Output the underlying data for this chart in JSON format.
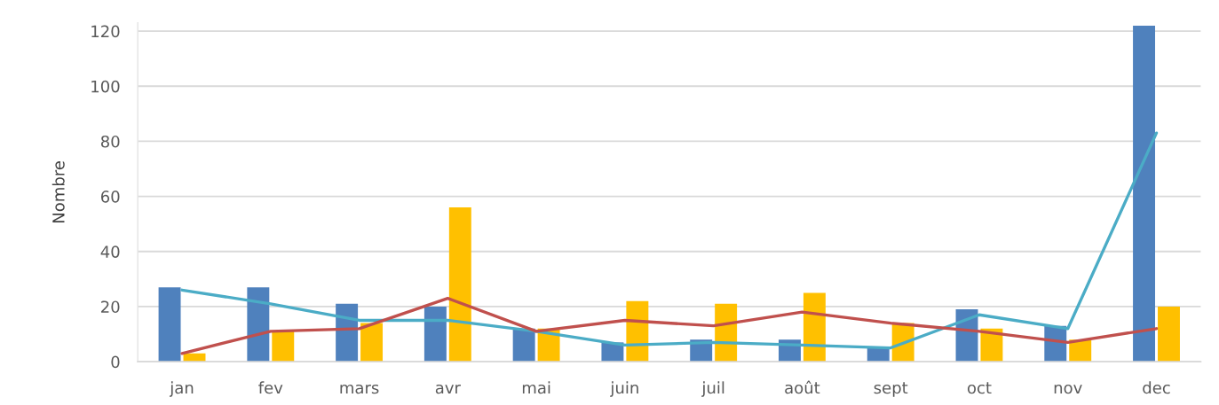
{
  "chart_data": {
    "type": "bar",
    "ylabel": "Nombre",
    "categories": [
      "jan",
      "fev",
      "mars",
      "avr",
      "mai",
      "juin",
      "juil",
      "août",
      "sept",
      "oct",
      "nov",
      "dec"
    ],
    "series": [
      {
        "color": "#4f81bd",
        "values": [
          27,
          27,
          21,
          20,
          12,
          7,
          8,
          8,
          5,
          19,
          13,
          122
        ]
      },
      {
        "color": "#ffc000",
        "values": [
          3,
          11,
          14,
          56,
          12,
          22,
          21,
          25,
          14,
          12,
          8,
          20
        ]
      },
      {
        "type": "line",
        "color": "#4bacc6",
        "values": [
          26,
          21,
          15,
          15,
          11,
          6,
          7,
          6,
          5,
          17,
          12,
          83
        ]
      },
      {
        "type": "line",
        "color": "#c0504d",
        "values": [
          3,
          11,
          12,
          23,
          11,
          15,
          13,
          18,
          14,
          11,
          7,
          12
        ]
      }
    ],
    "ylim": [
      0,
      123
    ],
    "yticks": [
      0,
      20,
      40,
      60,
      80,
      100,
      120
    ],
    "grid": "y",
    "line_style": "solid"
  }
}
